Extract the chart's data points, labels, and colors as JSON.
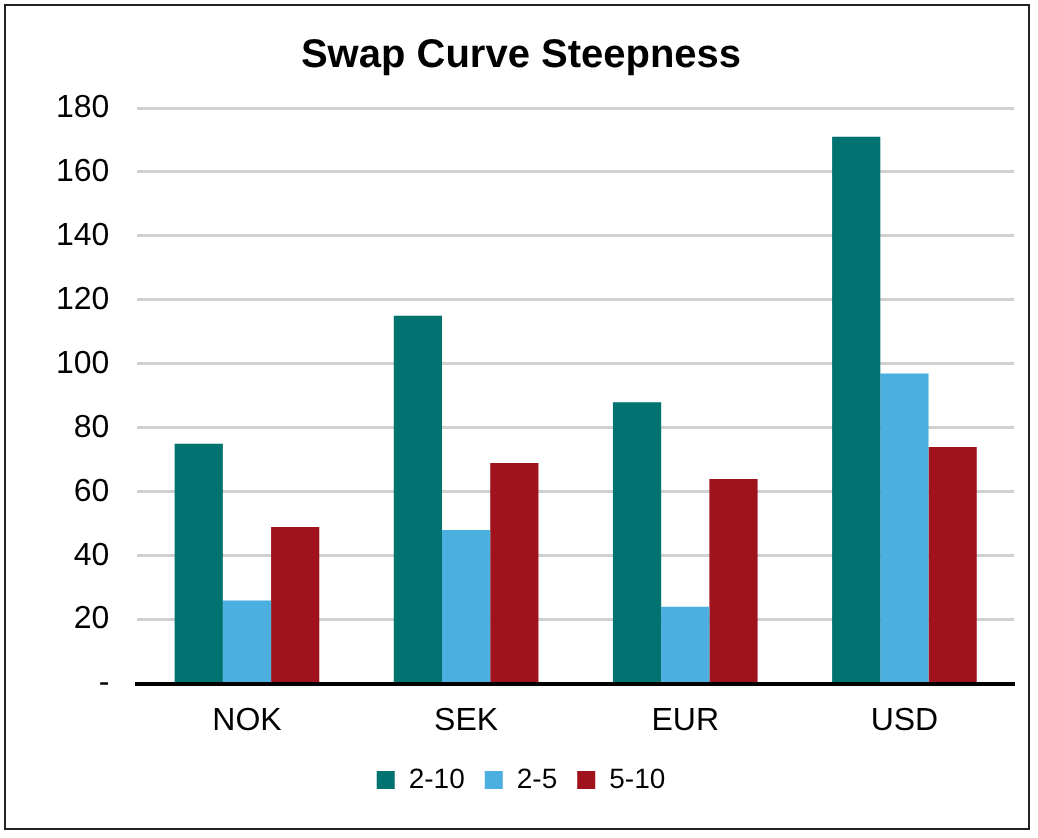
{
  "chart_data": {
    "type": "bar",
    "title": "Swap Curve Steepness",
    "categories": [
      "NOK",
      "SEK",
      "EUR",
      "USD"
    ],
    "series": [
      {
        "name": "2-10",
        "color": "#007370",
        "values": [
          75,
          115,
          88,
          171
        ]
      },
      {
        "name": "2-5",
        "color": "#4bb0df",
        "values": [
          26,
          48,
          24,
          97
        ]
      },
      {
        "name": "5-10",
        "color": "#a0121c",
        "values": [
          49,
          69,
          64,
          74
        ]
      }
    ],
    "ylim": [
      0,
      180
    ],
    "yticks": [
      {
        "value": 0,
        "label": "-"
      },
      20,
      40,
      60,
      80,
      100,
      120,
      140,
      160,
      180
    ],
    "grid": "y",
    "legend": "bottom"
  }
}
